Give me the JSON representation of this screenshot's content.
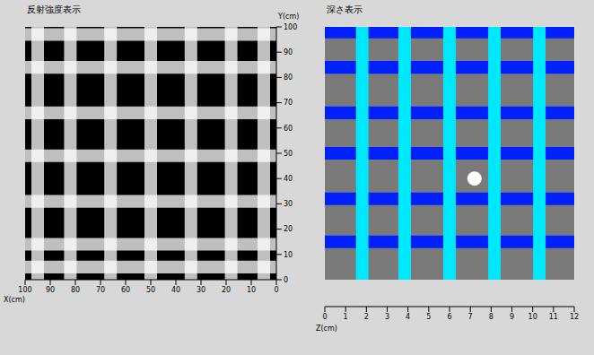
{
  "chart_data": [
    {
      "type": "heatmap",
      "title": "反射強度表示",
      "x_label": "X(cm)",
      "y_label": "Y(cm)",
      "xlim": [
        100,
        0
      ],
      "xticks": [
        100,
        90,
        80,
        70,
        60,
        50,
        40,
        30,
        20,
        10,
        0
      ],
      "ylim": [
        0,
        100
      ],
      "yticks": [
        0,
        10,
        20,
        30,
        40,
        50,
        60,
        70,
        80,
        90,
        100
      ],
      "grid": false,
      "color": "#ffffff",
      "x_lines": [
        95,
        82,
        66,
        50,
        34,
        18,
        5
      ],
      "y_lines": [
        97,
        84,
        66,
        49,
        31,
        14,
        5
      ]
    },
    {
      "type": "heatmap",
      "title": "深さ表示",
      "xlim": [
        100,
        0
      ],
      "xticks": [
        100,
        95,
        90,
        85,
        80,
        75,
        70,
        65,
        60,
        55,
        50,
        45,
        40,
        35,
        30,
        25,
        20,
        15,
        10,
        5,
        0
      ],
      "ylim": [
        0,
        100
      ],
      "yticks": [
        0,
        5,
        10,
        15,
        20,
        25,
        30,
        35,
        40,
        45,
        50,
        55,
        60,
        65,
        70,
        75,
        80,
        85,
        90,
        95,
        100
      ],
      "grid": true,
      "tick_labels": false,
      "x_lines": [
        {
          "x": 85,
          "depth": 9.5
        },
        {
          "x": 68,
          "depth": 9.5
        },
        {
          "x": 50,
          "depth": 9.5
        },
        {
          "x": 32,
          "depth": 9.5
        },
        {
          "x": 14,
          "depth": 9.5
        }
      ],
      "y_lines": [
        {
          "y": 98,
          "depth": 11.5
        },
        {
          "y": 84,
          "depth": 11.5
        },
        {
          "y": 66,
          "depth": 11.5
        },
        {
          "y": 50,
          "depth": 11.5
        },
        {
          "y": 32,
          "depth": 11.5
        },
        {
          "y": 15,
          "depth": 11.5
        }
      ],
      "points": [
        {
          "x": 40,
          "y": 40
        }
      ],
      "marker": "circle",
      "colorbar": {
        "label": "Z(cm)",
        "range": [
          0,
          12
        ],
        "ticks": [
          0,
          1,
          2,
          3,
          4,
          5,
          6,
          7,
          8,
          9,
          10,
          11,
          12
        ],
        "colors": [
          "#ff0000",
          "#ff4000",
          "#ff8000",
          "#ffc000",
          "#ffff00",
          "#c0ff00",
          "#40ff00",
          "#00ff80",
          "#00ffc0",
          "#00e8ff",
          "#0080ff",
          "#0020ff"
        ]
      }
    }
  ]
}
